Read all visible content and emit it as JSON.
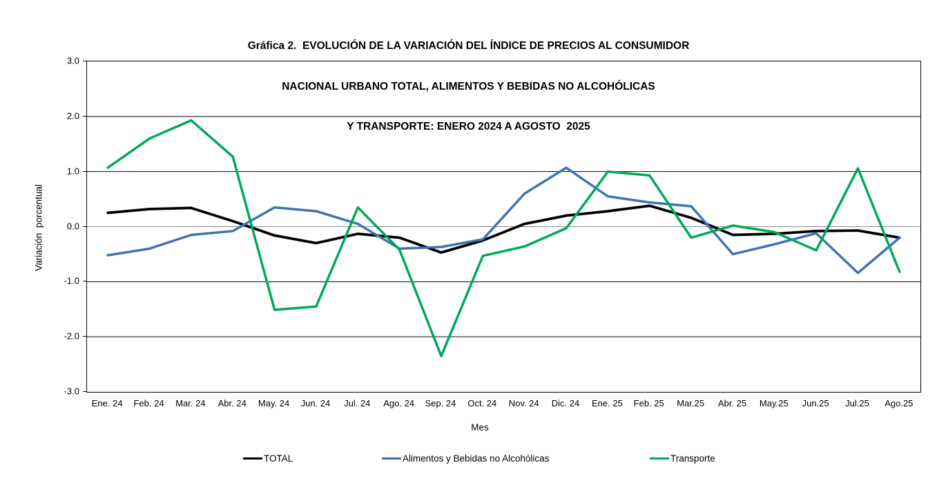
{
  "title_lines": [
    "Gráfica 2.  EVOLUCIÓN DE LA VARIACIÓN DEL ÍNDICE DE PRECIOS AL CONSUMIDOR",
    "NACIONAL URBANO TOTAL, ALIMENTOS Y BEBIDAS NO ALCOHÓLICAS",
    "Y TRANSPORTE: ENERO 2024 A AGOSTO  2025"
  ],
  "chart_data": {
    "type": "line",
    "title": "Gráfica 2. EVOLUCIÓN DE LA VARIACIÓN DEL ÍNDICE DE PRECIOS AL CONSUMIDOR NACIONAL URBANO TOTAL, ALIMENTOS Y BEBIDAS NO ALCOHÓLICAS Y TRANSPORTE: ENERO 2024 A AGOSTO 2025",
    "xlabel": "Mes",
    "ylabel": "Variación  porcentual",
    "ylim": [
      -3.0,
      3.0
    ],
    "yticks": [
      "3.0",
      "2.0",
      "1.0",
      "0.0",
      "-1.0",
      "-2.0",
      "-3.0"
    ],
    "grid": true,
    "legend_position": "bottom",
    "categories": [
      "Ene. 24",
      "Feb. 24",
      "Mar. 24",
      "Abr. 24",
      "May. 24",
      "Jun. 24",
      "Jul. 24",
      "Ago. 24",
      "Sep. 24",
      "Oct. 24",
      "Nov. 24",
      "Dic. 24",
      "Ene. 25",
      "Feb. 25",
      "Mar.25",
      "Abr. 25",
      "May.25",
      "Jun.25",
      "Jul.25",
      "Ago.25"
    ],
    "series": [
      {
        "name": "TOTAL",
        "color": "#000000",
        "stroke_width": 3.8,
        "values": [
          0.25,
          0.32,
          0.34,
          0.1,
          -0.16,
          -0.3,
          -0.13,
          -0.2,
          -0.47,
          -0.25,
          0.05,
          0.2,
          0.28,
          0.38,
          0.16,
          -0.15,
          -0.13,
          -0.08,
          -0.07,
          -0.2
        ]
      },
      {
        "name": "Alimentos y Bebidas no Alcohólicas",
        "color": "#3C74B4",
        "stroke_width": 3.5,
        "values": [
          -0.52,
          -0.4,
          -0.15,
          -0.08,
          0.35,
          0.28,
          0.05,
          -0.4,
          -0.37,
          -0.23,
          0.6,
          1.07,
          0.55,
          0.44,
          0.37,
          -0.5,
          -0.32,
          -0.12,
          -0.84,
          -0.2
        ]
      },
      {
        "name": "Transporte",
        "color": "#00A859",
        "stroke_width": 3.5,
        "values": [
          1.07,
          1.6,
          1.93,
          1.27,
          -1.51,
          -1.45,
          0.35,
          -0.42,
          -2.35,
          -0.53,
          -0.36,
          -0.03,
          1.0,
          0.93,
          -0.2,
          0.02,
          -0.1,
          -0.43,
          1.06,
          -0.82
        ]
      }
    ],
    "axis_color": "#000000",
    "zero_line_color": "#8a8a8a"
  }
}
